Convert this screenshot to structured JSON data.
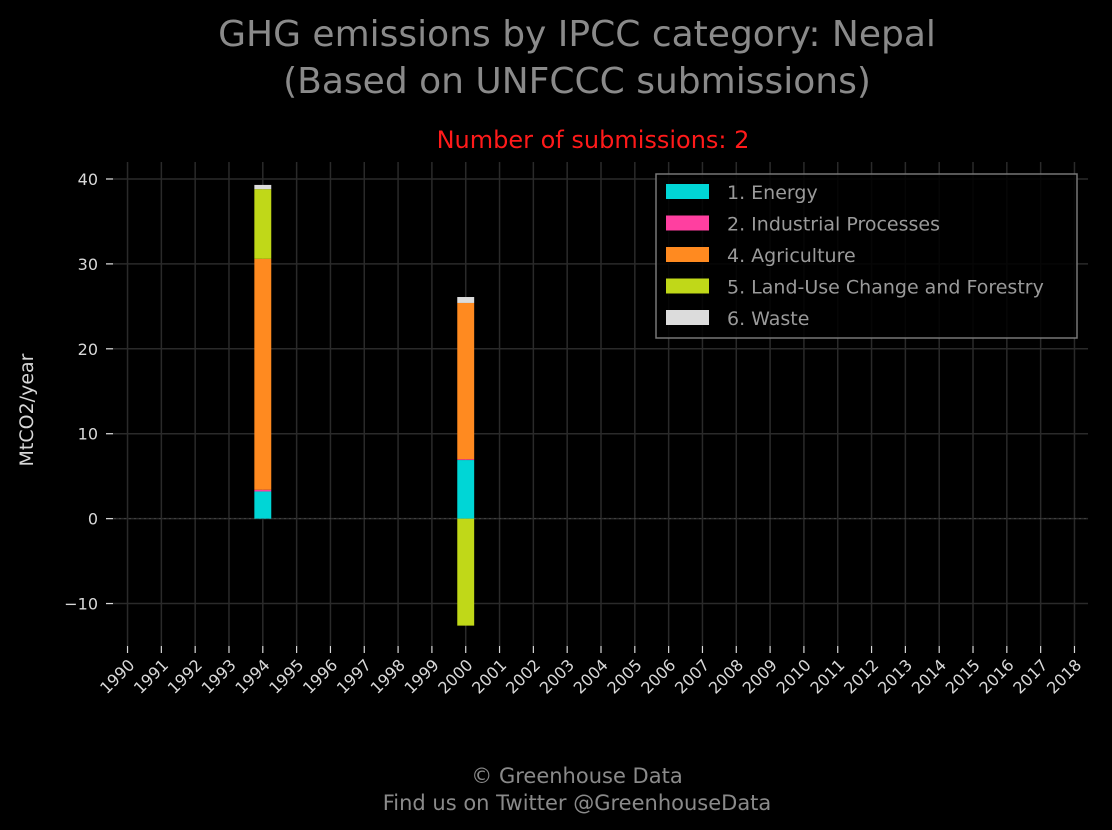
{
  "chart_data": {
    "type": "bar",
    "stacked": true,
    "title_line1": "GHG emissions by IPCC category: Nepal",
    "title_line2": "(Based on UNFCCC submissions)",
    "subtitle": "Number of submissions: 2",
    "xlabel": "",
    "ylabel": "MtCO2/year",
    "ylim": [
      -15,
      42
    ],
    "yticks": [
      40,
      30,
      20,
      10,
      0,
      -10
    ],
    "ytick_labels": [
      "40",
      "30",
      "20",
      "10",
      "0",
      "−10"
    ],
    "xlim": [
      1989.6,
      2018.4
    ],
    "categories": [
      "1990",
      "1991",
      "1992",
      "1993",
      "1994",
      "1995",
      "1996",
      "1997",
      "1998",
      "1999",
      "2000",
      "2001",
      "2002",
      "2003",
      "2004",
      "2005",
      "2006",
      "2007",
      "2008",
      "2009",
      "2010",
      "2011",
      "2012",
      "2013",
      "2014",
      "2015",
      "2016",
      "2017",
      "2018"
    ],
    "grid": true,
    "legend_position": "top-right",
    "series": [
      {
        "name": "1. Energy",
        "color": "#00d6d6",
        "x": [
          1994,
          2000
        ],
        "values": [
          3.2,
          6.9
        ]
      },
      {
        "name": "2. Industrial Processes",
        "color": "#ff3fa0",
        "x": [
          1994,
          2000
        ],
        "values": [
          0.2,
          0.1
        ]
      },
      {
        "name": "4. Agriculture",
        "color": "#ff8a20",
        "x": [
          1994,
          2000
        ],
        "values": [
          27.2,
          18.4
        ]
      },
      {
        "name": "5. Land-Use Change and Forestry",
        "color": "#c0d818",
        "x": [
          1994,
          2000
        ],
        "values": [
          8.2,
          -12.6
        ]
      },
      {
        "name": "6. Waste",
        "color": "#dcdcdc",
        "x": [
          1994,
          2000
        ],
        "values": [
          0.5,
          0.7
        ]
      }
    ]
  },
  "footer": {
    "line1": "© Greenhouse Data",
    "line2": "Find us on Twitter @GreenhouseData"
  }
}
